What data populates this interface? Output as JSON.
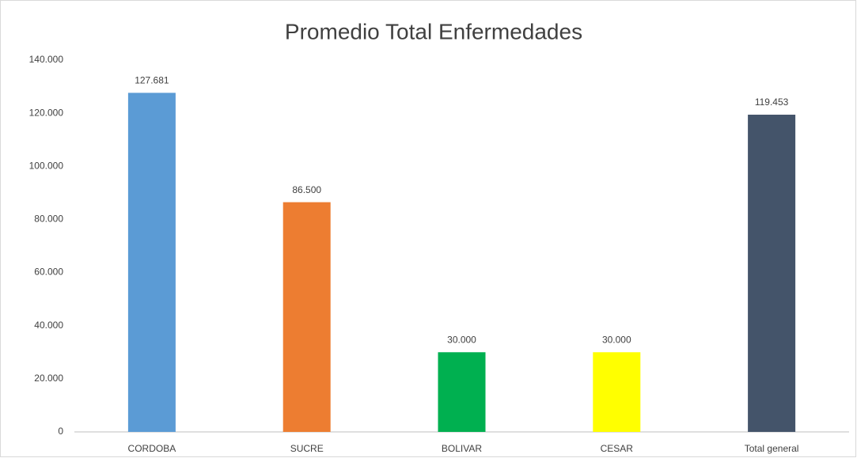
{
  "chart_data": {
    "type": "bar",
    "title": "Promedio Total Enfermedades",
    "categories": [
      "CORDOBA",
      "SUCRE",
      "BOLIVAR",
      "CESAR",
      "Total general"
    ],
    "values": [
      127681,
      86500,
      30000,
      30000,
      119453
    ],
    "value_labels": [
      "127.681",
      "86.500",
      "30.000",
      "30.000",
      "119.453"
    ],
    "colors": [
      "#5b9bd5",
      "#ed7d31",
      "#00b050",
      "#ffff00",
      "#44546a"
    ],
    "ylim": [
      0,
      140000
    ],
    "yticks": [
      0,
      {
        "value": 20000,
        "label": "20.000"
      },
      {
        "value": 40000,
        "label": "40.000"
      },
      {
        "value": 60000,
        "label": "60.000"
      },
      {
        "value": 80000,
        "label": "80.000"
      },
      {
        "value": 100000,
        "label": "100.000"
      },
      {
        "value": 120000,
        "label": "120.000"
      },
      {
        "value": 140000,
        "label": "140.000"
      }
    ],
    "grid": false
  }
}
